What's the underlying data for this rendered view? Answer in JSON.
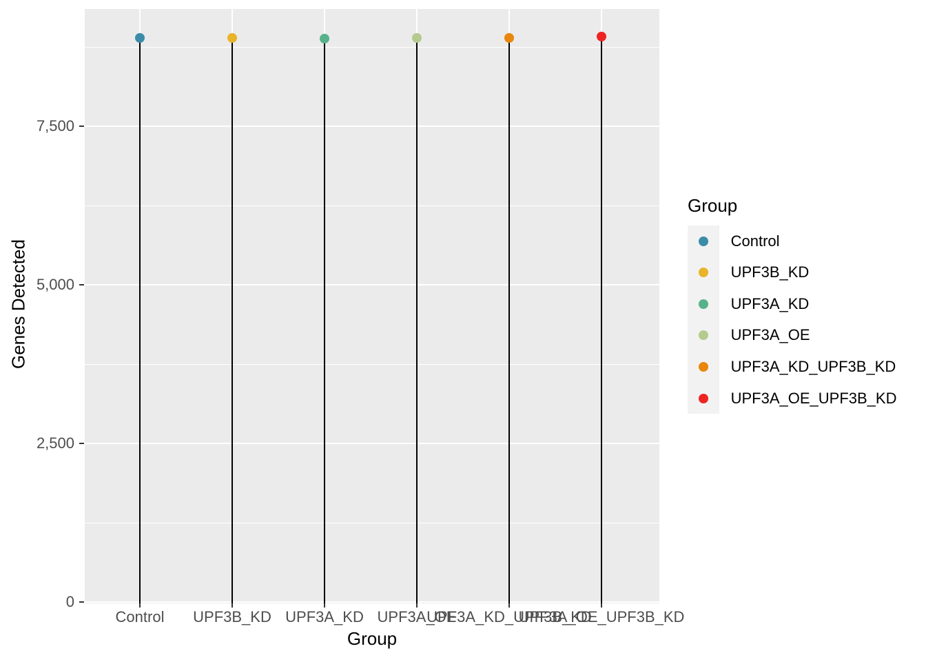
{
  "figure": {
    "x_axis_title": "Group",
    "y_axis_title": "Genes Detected"
  },
  "legend": {
    "title": "Group",
    "items": [
      {
        "label": "Control",
        "color": "#3A8CA8"
      },
      {
        "label": "UPF3B_KD",
        "color": "#E9B32A"
      },
      {
        "label": "UPF3A_KD",
        "color": "#57B28C"
      },
      {
        "label": "UPF3A_OE",
        "color": "#B5CA8D"
      },
      {
        "label": "UPF3A_KD_UPF3B_KD",
        "color": "#E8860D"
      },
      {
        "label": "UPF3A_OE_UPF3B_KD",
        "color": "#EE2423"
      }
    ]
  },
  "chart_data": {
    "type": "lollipop",
    "title": "",
    "xlabel": "Group",
    "ylabel": "Genes Detected",
    "categories": [
      "Control",
      "UPF3B_KD",
      "UPF3A_KD",
      "UPF3A_OE",
      "UPF3A_KD_UPF3B_KD",
      "UPF3A_OE_UPF3B_KD"
    ],
    "series": [
      {
        "name": "Genes Detected",
        "values": [
          8890,
          8890,
          8880,
          8890,
          8890,
          8910
        ]
      }
    ],
    "point_colors": [
      "#3A8CA8",
      "#E9B32A",
      "#57B28C",
      "#B5CA8D",
      "#E8860D",
      "#EE2423"
    ],
    "ylim": [
      0,
      9350
    ],
    "y_ticks": [
      {
        "value": 0,
        "label": "0"
      },
      {
        "value": 2500,
        "label": "2,500"
      },
      {
        "value": 5000,
        "label": "5,000"
      },
      {
        "value": 7500,
        "label": "7,500"
      }
    ],
    "y_minor_ticks": [
      1250,
      3750,
      6250,
      8750
    ],
    "grid": true,
    "legend_position": "right",
    "legend_title": "Group",
    "panel_background": "#EBEBEB",
    "grid_color": "#FFFFFF",
    "stem_color": "#000000",
    "tick_text_color": "#4D4D4D",
    "legend_key_background": "#F2F2F2"
  }
}
